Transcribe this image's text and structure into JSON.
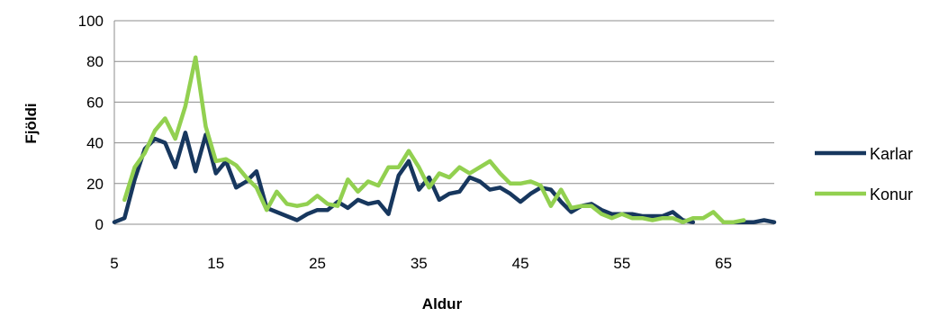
{
  "chart_data": {
    "type": "line",
    "xlabel": "Aldur",
    "ylabel": "Fjöldi",
    "xlim": [
      5,
      70
    ],
    "ylim": [
      0,
      100
    ],
    "x_ticks": [
      5,
      15,
      25,
      35,
      45,
      55,
      65
    ],
    "y_ticks": [
      0,
      20,
      40,
      60,
      80,
      100
    ],
    "grid": "horizontal",
    "legend": "right",
    "series": [
      {
        "name": "Karlar",
        "color": "#17375e",
        "points": [
          [
            5,
            1
          ],
          [
            6,
            3
          ],
          [
            7,
            22
          ],
          [
            8,
            37
          ],
          [
            9,
            42
          ],
          [
            10,
            40
          ],
          [
            11,
            28
          ],
          [
            12,
            45
          ],
          [
            13,
            26
          ],
          [
            14,
            44
          ],
          [
            15,
            25
          ],
          [
            16,
            31
          ],
          [
            17,
            18
          ],
          [
            18,
            21
          ],
          [
            19,
            26
          ],
          [
            20,
            8
          ],
          [
            22,
            4
          ],
          [
            23,
            2
          ],
          [
            24,
            5
          ],
          [
            25,
            7
          ],
          [
            26,
            7
          ],
          [
            27,
            11
          ],
          [
            28,
            8
          ],
          [
            29,
            12
          ],
          [
            30,
            10
          ],
          [
            31,
            11
          ],
          [
            32,
            5
          ],
          [
            33,
            24
          ],
          [
            34,
            31
          ],
          [
            35,
            17
          ],
          [
            36,
            23
          ],
          [
            37,
            12
          ],
          [
            38,
            15
          ],
          [
            39,
            16
          ],
          [
            40,
            23
          ],
          [
            41,
            21
          ],
          [
            42,
            17
          ],
          [
            43,
            18
          ],
          [
            44,
            15
          ],
          [
            45,
            11
          ],
          [
            46,
            15
          ],
          [
            47,
            18
          ],
          [
            48,
            17
          ],
          [
            49,
            11
          ],
          [
            50,
            6
          ],
          [
            51,
            9
          ],
          [
            52,
            10
          ],
          [
            53,
            7
          ],
          [
            54,
            5
          ],
          [
            55,
            5
          ],
          [
            56,
            5
          ],
          [
            57,
            4
          ],
          [
            58,
            4
          ],
          [
            59,
            4
          ],
          [
            60,
            6
          ],
          [
            61,
            2
          ],
          [
            62,
            1
          ],
          null,
          [
            66,
            1
          ],
          [
            67,
            1
          ],
          [
            68,
            1
          ],
          [
            69,
            2
          ],
          [
            70,
            1
          ]
        ]
      },
      {
        "name": "Konur",
        "color": "#92d050",
        "points": [
          [
            6,
            12
          ],
          [
            7,
            28
          ],
          [
            8,
            35
          ],
          [
            9,
            46
          ],
          [
            10,
            52
          ],
          [
            11,
            42
          ],
          [
            12,
            58
          ],
          [
            13,
            82
          ],
          [
            14,
            48
          ],
          [
            15,
            31
          ],
          [
            16,
            32
          ],
          [
            17,
            29
          ],
          [
            18,
            23
          ],
          [
            19,
            18
          ],
          [
            20,
            7
          ],
          [
            21,
            16
          ],
          [
            22,
            10
          ],
          [
            23,
            9
          ],
          [
            24,
            10
          ],
          [
            25,
            14
          ],
          [
            26,
            10
          ],
          [
            27,
            9
          ],
          [
            28,
            22
          ],
          [
            29,
            16
          ],
          [
            30,
            21
          ],
          [
            31,
            19
          ],
          [
            32,
            28
          ],
          [
            33,
            28
          ],
          [
            34,
            36
          ],
          [
            35,
            28
          ],
          [
            36,
            18
          ],
          [
            37,
            25
          ],
          [
            38,
            23
          ],
          [
            39,
            28
          ],
          [
            40,
            25
          ],
          [
            41,
            28
          ],
          [
            42,
            31
          ],
          [
            43,
            25
          ],
          [
            44,
            20
          ],
          [
            45,
            20
          ],
          [
            46,
            21
          ],
          [
            47,
            19
          ],
          [
            48,
            9
          ],
          [
            49,
            17
          ],
          [
            50,
            8
          ],
          [
            51,
            9
          ],
          [
            52,
            9
          ],
          [
            53,
            5
          ],
          [
            54,
            3
          ],
          [
            55,
            5
          ],
          [
            56,
            3
          ],
          [
            57,
            3
          ],
          [
            58,
            2
          ],
          [
            59,
            3
          ],
          [
            60,
            3
          ],
          [
            61,
            1
          ],
          [
            62,
            3
          ],
          [
            63,
            3
          ],
          [
            64,
            6
          ],
          [
            65,
            1
          ],
          [
            66,
            1
          ],
          [
            67,
            2
          ]
        ]
      }
    ]
  }
}
